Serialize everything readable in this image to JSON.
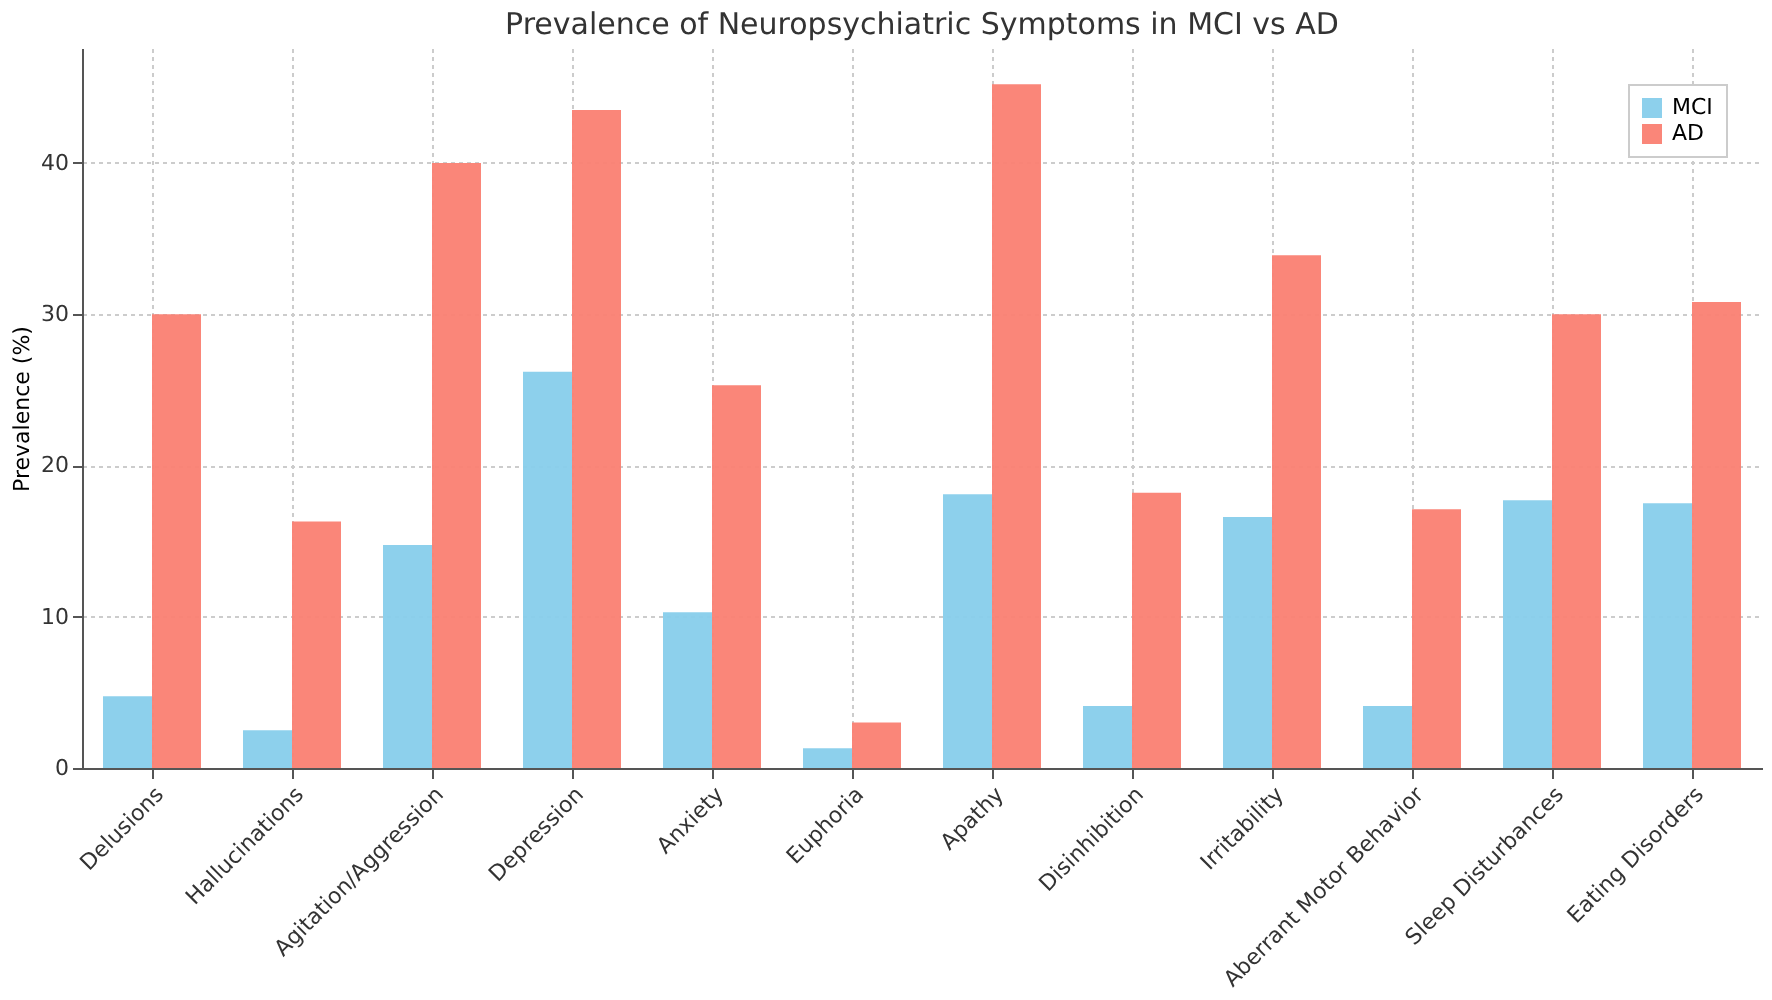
{
  "chart_data": {
    "type": "bar",
    "title": "Prevalence of Neuropsychiatric Symptoms in MCI vs AD",
    "ylabel": "Prevalence (%)",
    "categories": [
      "Delusions",
      "Hallucinations",
      "Agitation/Aggression",
      "Depression",
      "Anxiety",
      "Euphoria",
      "Apathy",
      "Disinhibition",
      "Irritability",
      "Aberrant Motor Behavior",
      "Sleep Disturbances",
      "Eating Disorders"
    ],
    "series": [
      {
        "name": "MCI",
        "color": "#87ceeb",
        "values": [
          4.75,
          2.5,
          14.75,
          26.2,
          10.3,
          1.3,
          18.1,
          4.1,
          16.6,
          4.1,
          17.7,
          17.5
        ]
      },
      {
        "name": "AD",
        "color": "#fa8072",
        "values": [
          30,
          16.3,
          40,
          43.5,
          25.3,
          3.0,
          45.2,
          18.2,
          33.9,
          17.1,
          30,
          30.8
        ]
      }
    ],
    "ylim": [
      0,
      47.6
    ],
    "yticks": [
      0,
      10,
      20,
      30,
      40
    ],
    "grid": true,
    "legend": "top right"
  }
}
